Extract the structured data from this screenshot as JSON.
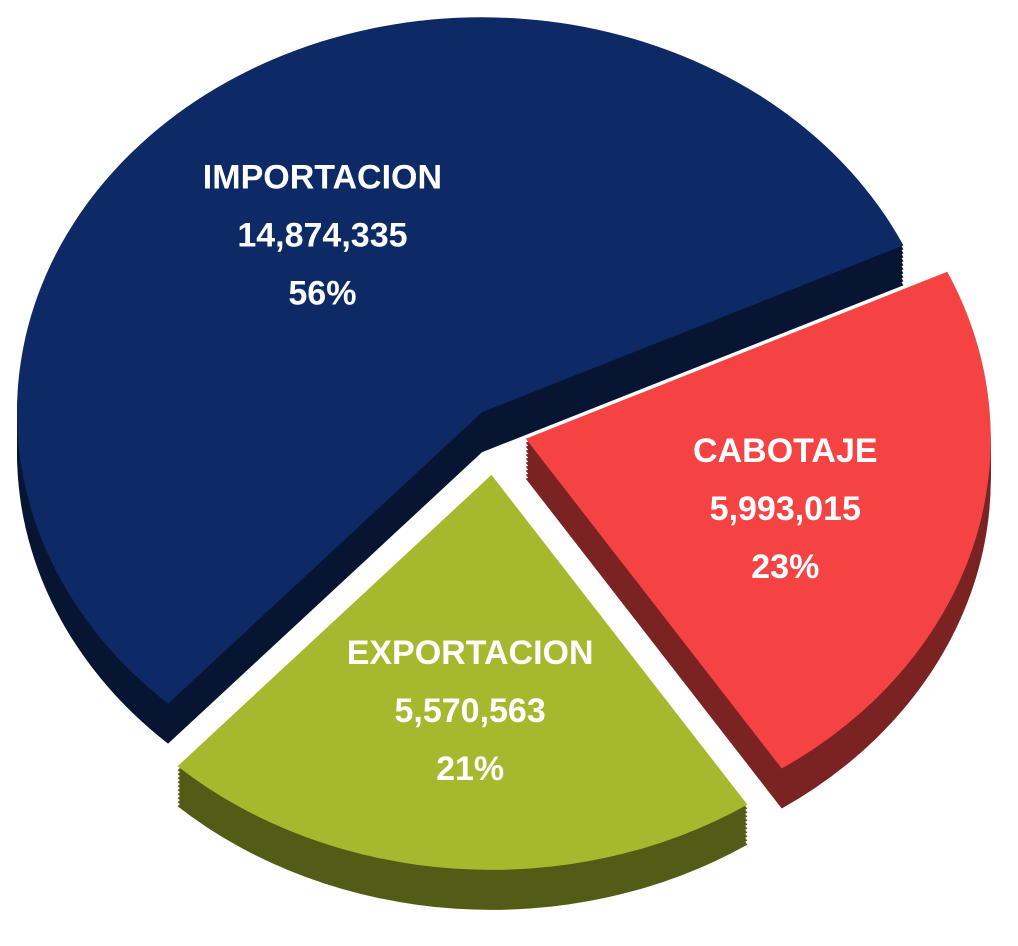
{
  "chart_data": {
    "type": "pie",
    "exploded": true,
    "three_d": true,
    "categories": [
      "IMPORTACION",
      "EXPORTACION",
      "CABOTAJE"
    ],
    "values": [
      14874335,
      5570563,
      5993015
    ],
    "value_labels": [
      "14,874,335",
      "5,570,563",
      "5,993,015"
    ],
    "percentages": [
      56,
      21,
      23
    ],
    "percentage_labels": [
      "56%",
      "21%",
      "23%"
    ],
    "colors": [
      "#0d2a66",
      "#a6b92e",
      "#f54343"
    ]
  }
}
